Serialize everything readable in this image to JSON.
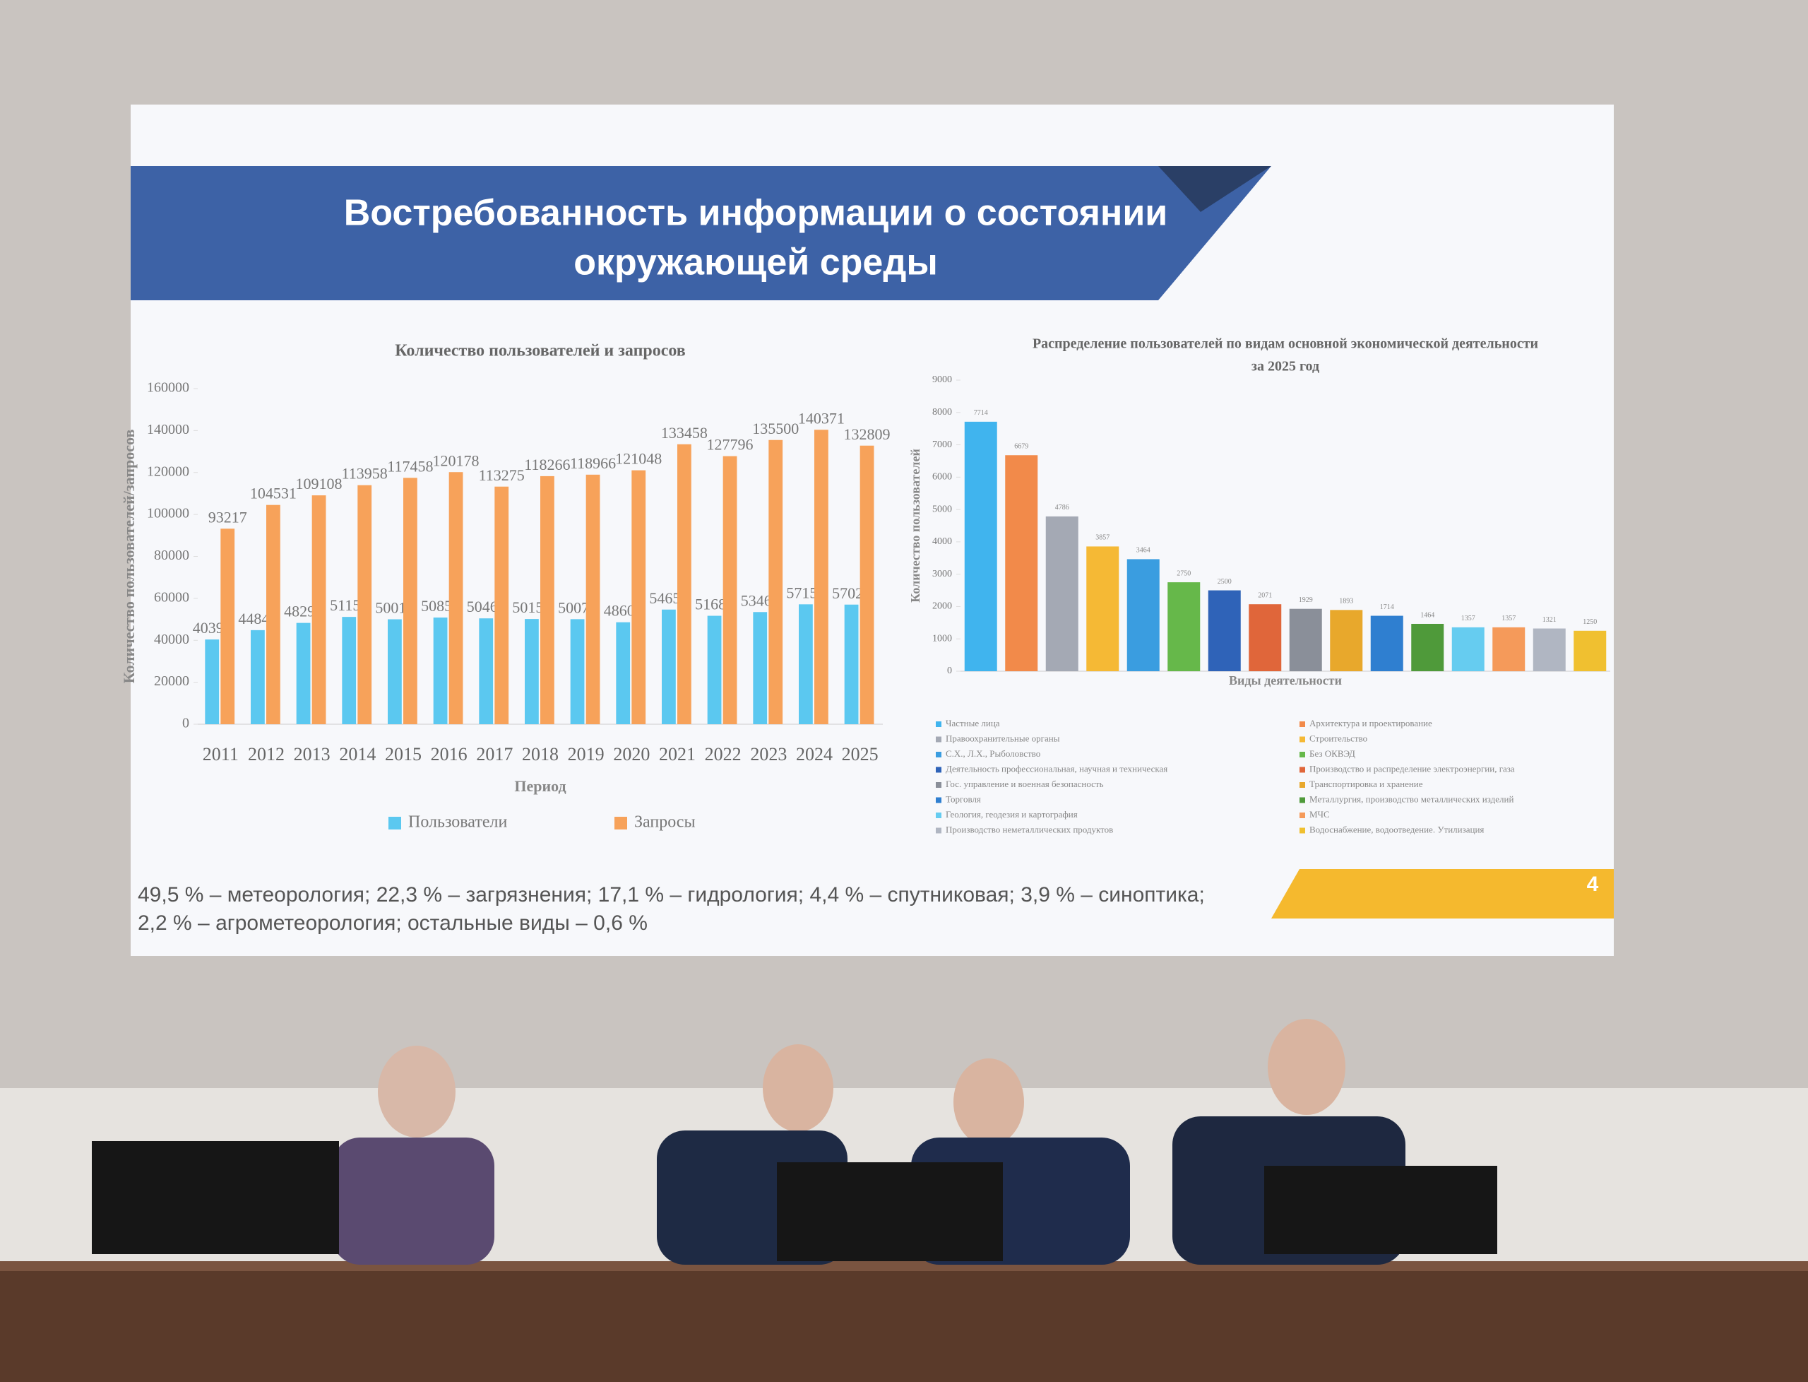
{
  "slide": {
    "title_lines": [
      "Востребованность информации о состоянии",
      "окружающей среды"
    ],
    "footnote_lines": [
      "49,5 % – метеорология; 22,3 % – загрязнения; 17,1 % – гидрология; 4,4 % – спутниковая; 3,9 % – синоптика;",
      "2,2 % – агрометеорология; остальные виды – 0,6 %"
    ],
    "page_number": "4"
  },
  "chart_data": [
    {
      "type": "bar",
      "title": "Количество пользователей и запросов",
      "x_label": "Период",
      "y_label": "Количество пользователей/запросов",
      "categories": [
        "2011",
        "2012",
        "2013",
        "2014",
        "2015",
        "2016",
        "2017",
        "2018",
        "2019",
        "2020",
        "2021",
        "2022",
        "2023",
        "2024",
        "2025"
      ],
      "series": [
        {
          "name": "Пользователи",
          "color": "#5bc8f0",
          "values": [
            40390,
            44842,
            48294,
            51155,
            50018,
            50853,
            50460,
            50156,
            50074,
            48608,
            54650,
            51688,
            53469,
            57157,
            57022
          ]
        },
        {
          "name": "Запросы",
          "color": "#f7a25a",
          "values": [
            93217,
            104531,
            109108,
            113958,
            117458,
            120178,
            113275,
            118266,
            118966,
            121048,
            133458,
            127796,
            135500,
            140371,
            132809
          ]
        }
      ],
      "ylim": [
        0,
        160000
      ],
      "yticks": [
        0,
        20000,
        40000,
        60000,
        80000,
        100000,
        120000,
        140000,
        160000
      ],
      "grid": false,
      "legend": "bottom"
    },
    {
      "type": "bar",
      "title": "Распределение пользователей по видам основной экономической деятельности",
      "subtitle": "за 2025 год",
      "x_label": "Виды деятельности",
      "y_label": "Количество пользователей",
      "categories": [
        "Частные лица",
        "Архитектура и проектирование",
        "Правоохранительные органы",
        "Строительство",
        "С.Х., Л.Х., Рыболовство",
        "Без ОКВЭД",
        "Деятельность профессиональная, научная и техническая",
        "Производство и распределение электроэнергии, газа",
        "Гос. управление и военная безопасность",
        "Транспортировка и хранение",
        "Торговля",
        "Металлургия, производство металлических изделий",
        "Геология, геодезия и картография",
        "МЧС",
        "Производство неметаллических продуктов",
        "Водоснабжение, водоотведение. Утилизация"
      ],
      "values": [
        7714,
        6679,
        4786,
        3857,
        3464,
        2750,
        2500,
        2071,
        1929,
        1893,
        1714,
        1464,
        1357,
        1357,
        1321,
        1250
      ],
      "colors": [
        "#40b4ee",
        "#f28a4a",
        "#a4a9b4",
        "#f5b935",
        "#3a9de0",
        "#66b84a",
        "#2f63b8",
        "#e0663a",
        "#8a8f99",
        "#e8a82c",
        "#2f7fd0",
        "#4f9a3a",
        "#66ccf0",
        "#f59a5a",
        "#b0b6c2",
        "#f0c030"
      ],
      "ylim": [
        0,
        9000
      ],
      "yticks": [
        0,
        1000,
        2000,
        3000,
        4000,
        5000,
        6000,
        7000,
        8000,
        9000
      ],
      "grid": false,
      "legend": "bottom"
    }
  ]
}
